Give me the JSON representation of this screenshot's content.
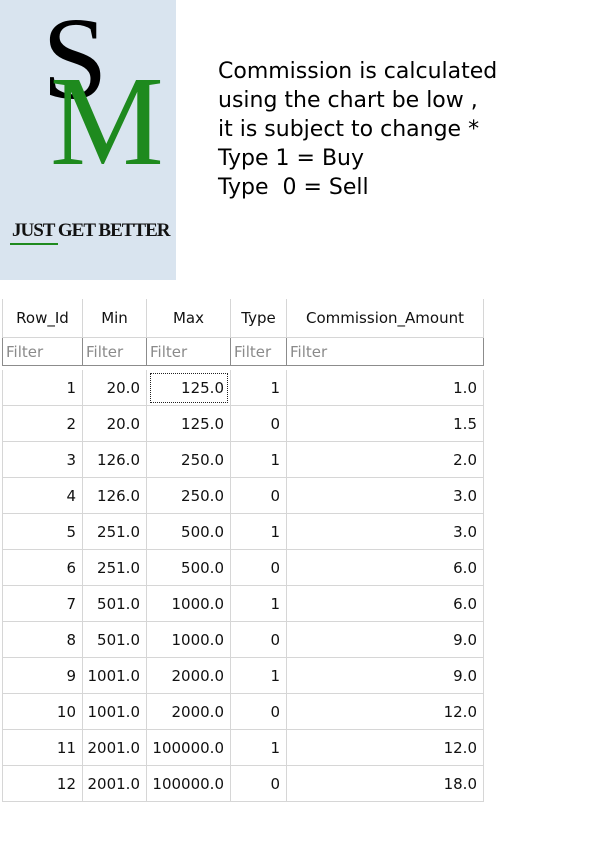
{
  "logo": {
    "letter_s": "S",
    "letter_m": "M",
    "tagline": "JUST GET BETTER",
    "colors": {
      "background": "#d9e4ef",
      "accent": "#1e8a1e",
      "ink": "#000000"
    }
  },
  "note": {
    "lines": [
      "Commission is calculated",
      "using the chart be low ,",
      "it is subject to change *",
      "Type 1 = Buy",
      "Type  0 = Sell"
    ]
  },
  "table": {
    "columns": [
      "Row_Id",
      "Min",
      "Max",
      "Type",
      "Commission_Amount"
    ],
    "filter_placeholder": "Filter",
    "rows": [
      [
        "1",
        "20.0",
        "125.0",
        "1",
        "1.0"
      ],
      [
        "2",
        "20.0",
        "125.0",
        "0",
        "1.5"
      ],
      [
        "3",
        "126.0",
        "250.0",
        "1",
        "2.0"
      ],
      [
        "4",
        "126.0",
        "250.0",
        "0",
        "3.0"
      ],
      [
        "5",
        "251.0",
        "500.0",
        "1",
        "3.0"
      ],
      [
        "6",
        "251.0",
        "500.0",
        "0",
        "6.0"
      ],
      [
        "7",
        "501.0",
        "1000.0",
        "1",
        "6.0"
      ],
      [
        "8",
        "501.0",
        "1000.0",
        "0",
        "9.0"
      ],
      [
        "9",
        "1001.0",
        "2000.0",
        "1",
        "9.0"
      ],
      [
        "10",
        "1001.0",
        "2000.0",
        "0",
        "12.0"
      ],
      [
        "11",
        "2001.0",
        "100000.0",
        "1",
        "12.0"
      ],
      [
        "12",
        "2001.0",
        "100000.0",
        "0",
        "18.0"
      ]
    ]
  }
}
